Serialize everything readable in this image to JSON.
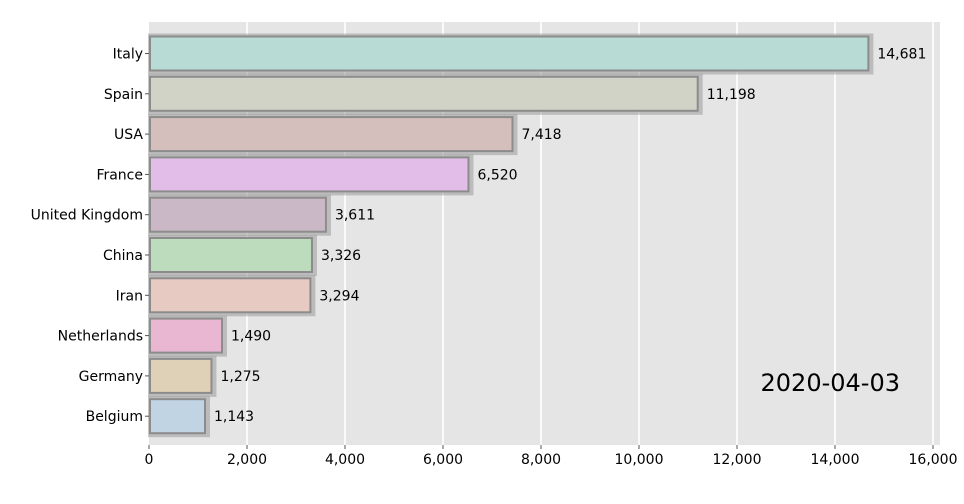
{
  "chart_data": {
    "type": "bar",
    "orientation": "horizontal",
    "categories": [
      "Italy",
      "Spain",
      "USA",
      "France",
      "United Kingdom",
      "China",
      "Iran",
      "Netherlands",
      "Germany",
      "Belgium"
    ],
    "values": [
      14681,
      11198,
      7418,
      6520,
      3611,
      3326,
      3294,
      1490,
      1275,
      1143
    ],
    "value_labels": [
      "14,681",
      "11,198",
      "7,418",
      "6,520",
      "3,611",
      "3,326",
      "3,294",
      "1,490",
      "1,275",
      "1,143"
    ],
    "colors": [
      "#b8dbd5",
      "#d1d3c7",
      "#d4bfbd",
      "#e1bde8",
      "#cbb8c6",
      "#bddbbd",
      "#e7cac1",
      "#e9b7d2",
      "#dfd0b8",
      "#c0d4e4"
    ],
    "xlim": [
      0,
      16000
    ],
    "xticks": [
      0,
      2000,
      4000,
      6000,
      8000,
      10000,
      12000,
      14000,
      16000
    ],
    "xtick_labels": [
      "0",
      "2,000",
      "4,000",
      "6,000",
      "8,000",
      "10,000",
      "12,000",
      "14,000",
      "16,000"
    ],
    "grid": true,
    "date": "2020-04-03",
    "title": "",
    "xlabel": "",
    "ylabel": ""
  }
}
